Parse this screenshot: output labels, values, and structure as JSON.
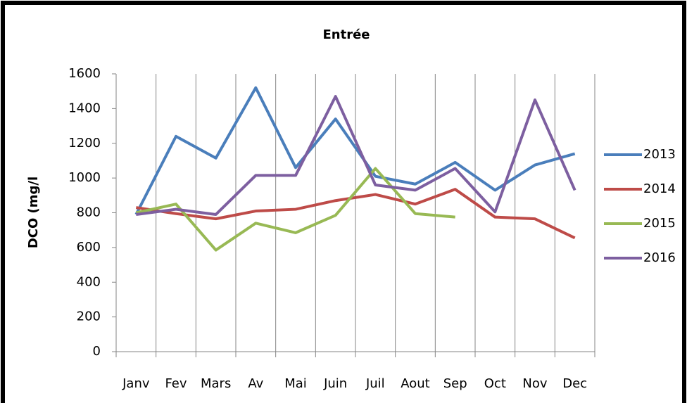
{
  "chart_data": {
    "type": "line",
    "title": "Entrée",
    "y_label": "DCO (mg/l",
    "categories": [
      "Janv",
      "Fev",
      "Mars",
      "Av",
      "Mai",
      "Juin",
      "Juil",
      "Aout",
      "Sep",
      "Oct",
      "Nov",
      "Dec"
    ],
    "series": [
      {
        "name": "2013",
        "color": "#4a7ebb",
        "values": [
          790,
          1240,
          1115,
          1520,
          1060,
          1340,
          1010,
          965,
          1090,
          930,
          1075,
          1140
        ]
      },
      {
        "name": "2014",
        "color": "#be4b48",
        "values": [
          830,
          795,
          765,
          810,
          820,
          870,
          905,
          850,
          935,
          775,
          765,
          655
        ]
      },
      {
        "name": "2015",
        "color": "#98b954",
        "values": [
          800,
          850,
          585,
          740,
          685,
          785,
          1055,
          795,
          775,
          null,
          null,
          null
        ]
      },
      {
        "name": "2016",
        "color": "#7d5fa0",
        "values": [
          790,
          820,
          790,
          1015,
          1015,
          1470,
          960,
          930,
          1055,
          805,
          1450,
          930
        ]
      }
    ],
    "ylim": [
      0,
      1600
    ],
    "yticks": [
      0,
      200,
      400,
      600,
      800,
      1000,
      1200,
      1400,
      1600
    ],
    "legend": "right"
  }
}
